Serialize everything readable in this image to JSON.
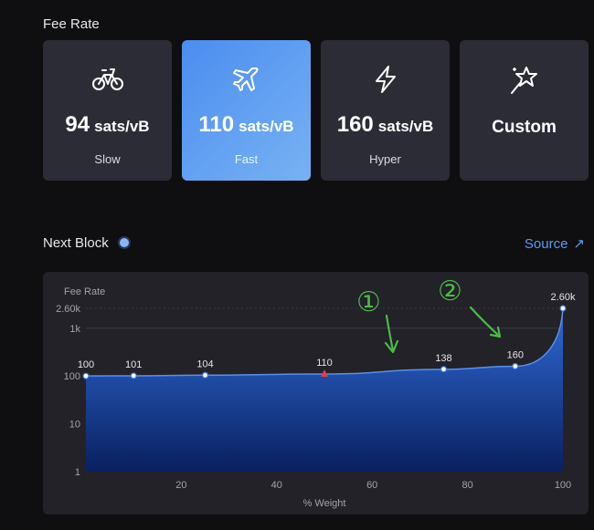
{
  "fee_rate": {
    "title": "Fee Rate",
    "options": [
      {
        "icon": "bicycle-icon",
        "value": "94",
        "unit": "sats/vB",
        "label": "Slow",
        "selected": false
      },
      {
        "icon": "airplane-icon",
        "value": "110",
        "unit": "sats/vB",
        "label": "Fast",
        "selected": true
      },
      {
        "icon": "lightning-icon",
        "value": "160",
        "unit": "sats/vB",
        "label": "Hyper",
        "selected": false
      },
      {
        "icon": "magic-star-icon",
        "label": "Custom",
        "selected": false
      }
    ]
  },
  "next_block": {
    "title": "Next Block",
    "source_label": "Source",
    "source_icon": "external-link-icon"
  },
  "colors": {
    "accent": "#4b8df0",
    "card_bg": "#2b2c36",
    "link": "#5b9cf0",
    "area_top": "#2f6bd6",
    "area_bottom": "#0a2060",
    "marker_current": "#e0404a",
    "annotation": "#4fb94a"
  },
  "chart_data": {
    "type": "area",
    "ylabel": "Fee Rate",
    "xlabel": "% Weight",
    "y_scale": "log",
    "ylim": [
      1,
      2600
    ],
    "xlim": [
      0,
      100
    ],
    "y_ticks": [
      {
        "value": 1,
        "label": "1"
      },
      {
        "value": 10,
        "label": "10"
      },
      {
        "value": 100,
        "label": "100"
      },
      {
        "value": 1000,
        "label": "1k"
      },
      {
        "value": 2600,
        "label": "2.60k"
      }
    ],
    "x_ticks": [
      {
        "value": 20,
        "label": "20"
      },
      {
        "value": 40,
        "label": "40"
      },
      {
        "value": 60,
        "label": "60"
      },
      {
        "value": 80,
        "label": "80"
      },
      {
        "value": 100,
        "label": "100"
      }
    ],
    "points": [
      {
        "x": 0,
        "y": 100,
        "label": "100"
      },
      {
        "x": 10,
        "y": 101,
        "label": "101"
      },
      {
        "x": 25,
        "y": 104,
        "label": "104"
      },
      {
        "x": 50,
        "y": 110,
        "label": "110",
        "current": true
      },
      {
        "x": 75,
        "y": 138,
        "label": "138"
      },
      {
        "x": 90,
        "y": 160,
        "label": "160"
      },
      {
        "x": 100,
        "y": 2600,
        "label": "2.60k"
      }
    ],
    "annotations": [
      {
        "label": "①"
      },
      {
        "label": "②"
      }
    ]
  }
}
